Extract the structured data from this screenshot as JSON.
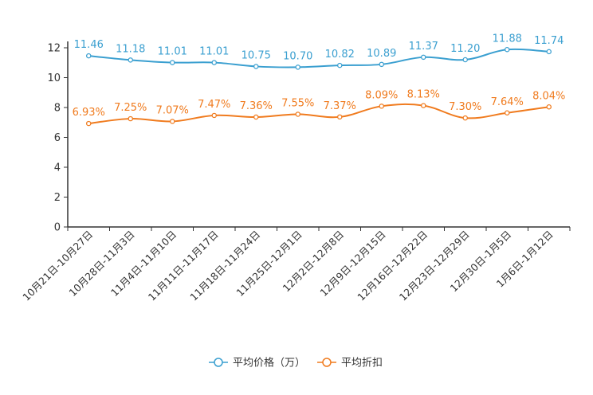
{
  "chart_data": {
    "type": "line",
    "categories": [
      "10月21日-10月27日",
      "10月28日-11月3日",
      "11月4日-11月10日",
      "11月11日-11月17日",
      "11月18日-11月24日",
      "11月25日-12月1日",
      "12月2日-12月8日",
      "12月9日-12月15日",
      "12月16日-12月22日",
      "12月23日-12月29日",
      "12月30日-1月5日",
      "1月6日-1月12日"
    ],
    "series": [
      {
        "name": "平均价格（万）",
        "color": "#3a9fd0",
        "values": [
          11.46,
          11.18,
          11.01,
          11.01,
          10.75,
          10.7,
          10.82,
          10.89,
          11.37,
          11.2,
          11.88,
          11.74
        ],
        "labels": [
          "11.46",
          "11.18",
          "11.01",
          "11.01",
          "10.75",
          "10.70",
          "10.82",
          "10.89",
          "11.37",
          "11.20",
          "11.88",
          "11.74"
        ]
      },
      {
        "name": "平均折扣",
        "color": "#f07b1e",
        "values": [
          6.93,
          7.25,
          7.07,
          7.47,
          7.36,
          7.55,
          7.37,
          8.09,
          8.13,
          7.3,
          7.64,
          8.04
        ],
        "labels": [
          "6.93%",
          "7.25%",
          "7.07%",
          "7.47%",
          "7.36%",
          "7.55%",
          "7.37%",
          "8.09%",
          "8.13%",
          "7.30%",
          "7.64%",
          "8.04%"
        ]
      }
    ],
    "yticks": [
      "0",
      "2",
      "4",
      "6",
      "8",
      "10",
      "12"
    ],
    "ylim": [
      0,
      12
    ],
    "title": "",
    "xlabel": "",
    "ylabel": "",
    "legend_position": "bottom-center"
  }
}
